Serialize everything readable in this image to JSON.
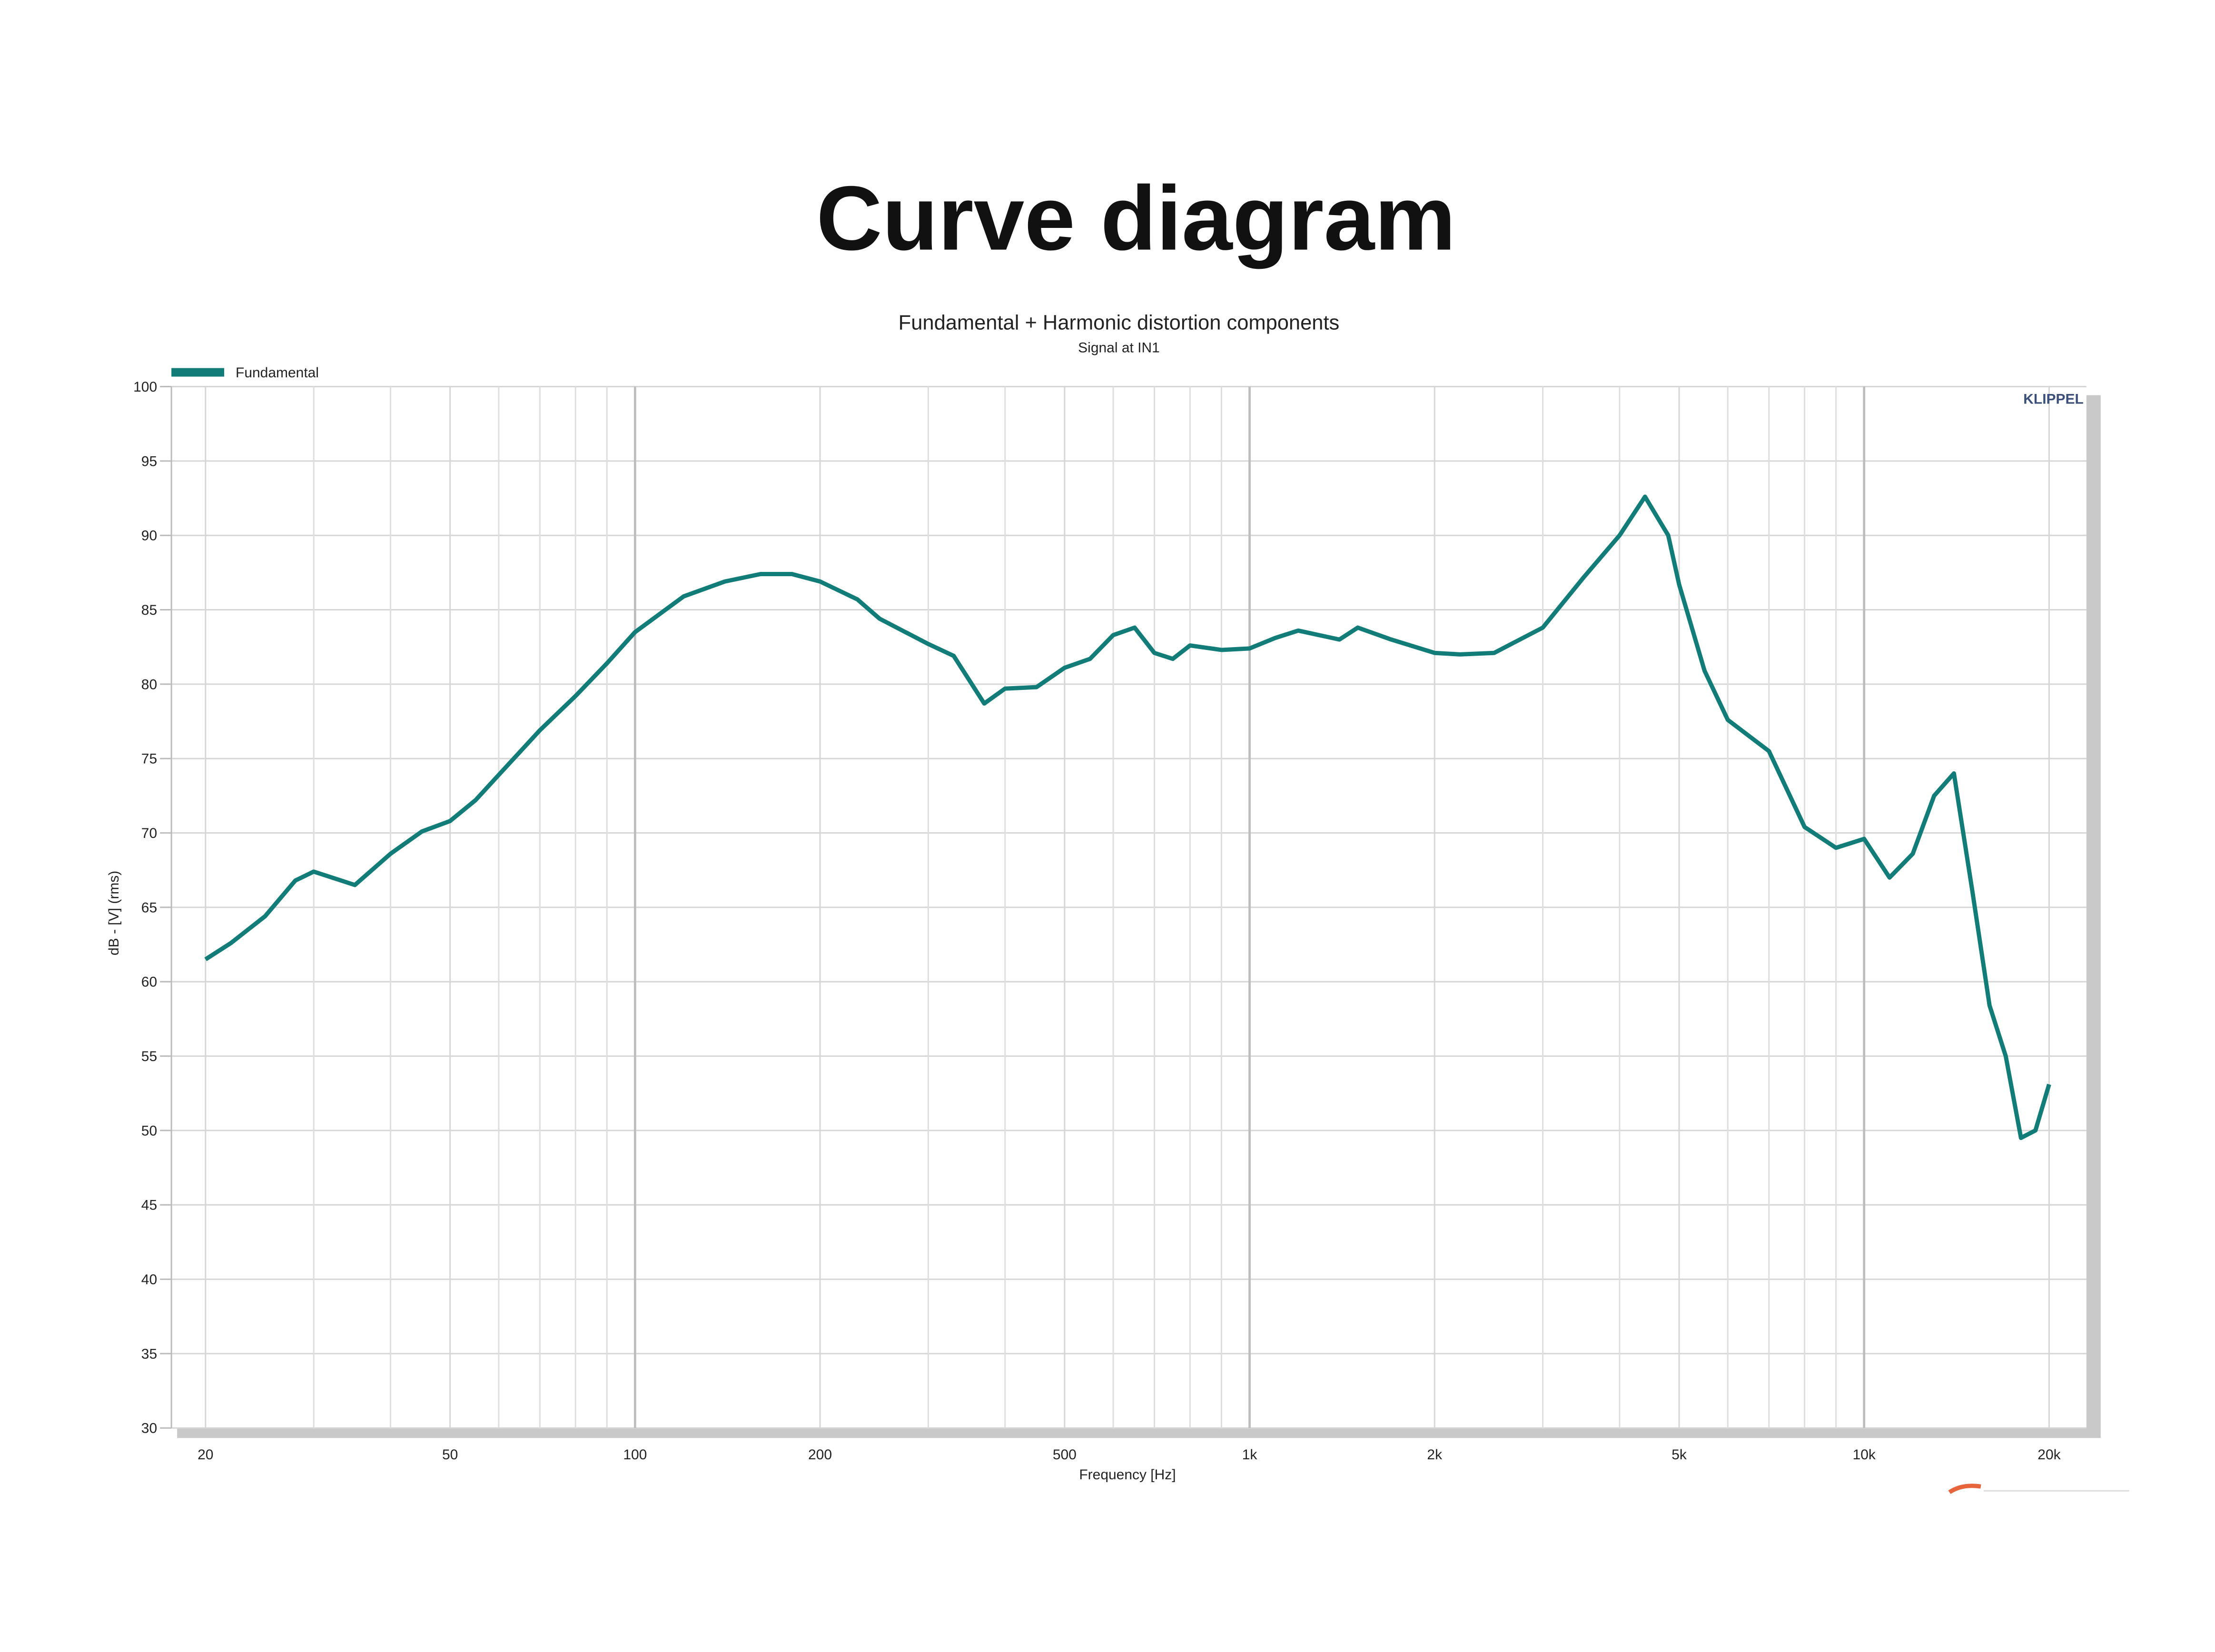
{
  "header": {
    "title": "Curve diagram"
  },
  "chart_data": {
    "type": "line",
    "title": "Fundamental + Harmonic distortion components",
    "subtitle": "Signal at IN1",
    "watermark": "KLIPPEL",
    "x_label": "Frequency [Hz]",
    "y_label": "dB - [V] (rms)",
    "x": [
      20,
      22,
      25,
      28,
      30,
      35,
      40,
      45,
      50,
      55,
      60,
      70,
      80,
      90,
      100,
      120,
      140,
      160,
      180,
      200,
      230,
      250,
      300,
      330,
      370,
      400,
      450,
      500,
      550,
      600,
      650,
      700,
      750,
      800,
      900,
      1000,
      1100,
      1200,
      1400,
      1500,
      1700,
      2000,
      2200,
      2500,
      3000,
      3500,
      4000,
      4400,
      4800,
      5000,
      5500,
      6000,
      7000,
      8000,
      9000,
      10000,
      11000,
      12000,
      13000,
      14000,
      15000,
      16000,
      17000,
      18000,
      19000,
      20000
    ],
    "series": [
      {
        "name": "Fundamental",
        "color": "#127d78",
        "values": [
          61.5,
          62.6,
          64.4,
          66.8,
          67.4,
          66.5,
          68.6,
          70.1,
          70.8,
          72.2,
          73.9,
          76.9,
          79.2,
          81.4,
          83.5,
          85.9,
          86.9,
          87.4,
          87.4,
          86.9,
          85.7,
          84.4,
          82.7,
          81.9,
          78.7,
          79.7,
          79.8,
          81.1,
          81.7,
          83.3,
          83.8,
          82.1,
          81.7,
          82.6,
          82.3,
          82.4,
          83.1,
          83.6,
          83.0,
          83.8,
          83.0,
          82.1,
          82.0,
          82.1,
          83.8,
          87.2,
          90.0,
          92.6,
          90.0,
          86.7,
          80.9,
          77.6,
          75.5,
          70.4,
          69.0,
          69.6,
          67.0,
          68.6,
          72.5,
          74.0,
          66.1,
          58.4,
          55.0,
          49.5,
          50.0,
          53.1
        ]
      }
    ],
    "x_log": true,
    "xlim": [
      17.6,
      23000
    ],
    "ylim": [
      30,
      100
    ],
    "xticks": [
      20,
      50,
      100,
      200,
      500,
      {
        "value": 1000,
        "label": "1k"
      },
      {
        "value": 2000,
        "label": "2k"
      },
      {
        "value": 5000,
        "label": "5k"
      },
      {
        "value": 10000,
        "label": "10k"
      },
      {
        "value": 20000,
        "label": "20k"
      }
    ],
    "x_minor_ticks": [
      30,
      40,
      60,
      70,
      80,
      90,
      300,
      400,
      600,
      700,
      800,
      900,
      3000,
      4000,
      6000,
      7000,
      8000,
      9000
    ],
    "yticks": [
      30,
      35,
      40,
      45,
      50,
      55,
      60,
      65,
      70,
      75,
      80,
      85,
      90,
      95,
      100
    ],
    "grid": true,
    "legend": "top-left"
  }
}
